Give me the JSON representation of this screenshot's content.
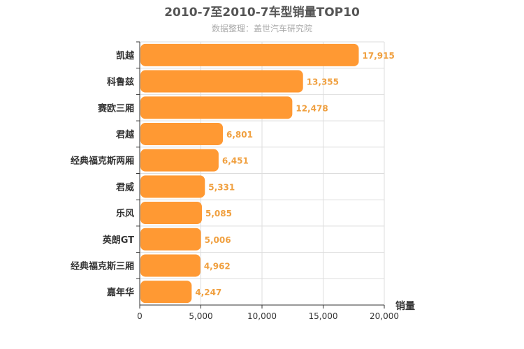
{
  "chart_data": {
    "type": "bar",
    "orientation": "horizontal",
    "title": "2010-7至2010-7车型销量TOP10",
    "subtitle": "数据整理：盖世汽车研究院",
    "xlabel": "销量",
    "categories": [
      "凯越",
      "科鲁兹",
      "赛欧三厢",
      "君越",
      "经典福克斯两厢",
      "君威",
      "乐风",
      "英朗GT",
      "经典福克斯三厢",
      "嘉年华"
    ],
    "values": [
      17915,
      13355,
      12478,
      6801,
      6451,
      5331,
      5085,
      5006,
      4962,
      4247
    ],
    "value_labels": [
      "17,915",
      "13,355",
      "12,478",
      "6,801",
      "6,451",
      "5,331",
      "5,085",
      "5,006",
      "4,962",
      "4,247"
    ],
    "xlim": [
      0,
      20000
    ],
    "x_ticks": [
      0,
      5000,
      10000,
      15000,
      20000
    ],
    "x_tick_labels": [
      "0",
      "5,000",
      "10,000",
      "15,000",
      "20,000"
    ],
    "grid": true,
    "colors": {
      "bar": "#ff9933",
      "value_label": "#f0a040",
      "grid": "#dddddd"
    }
  }
}
